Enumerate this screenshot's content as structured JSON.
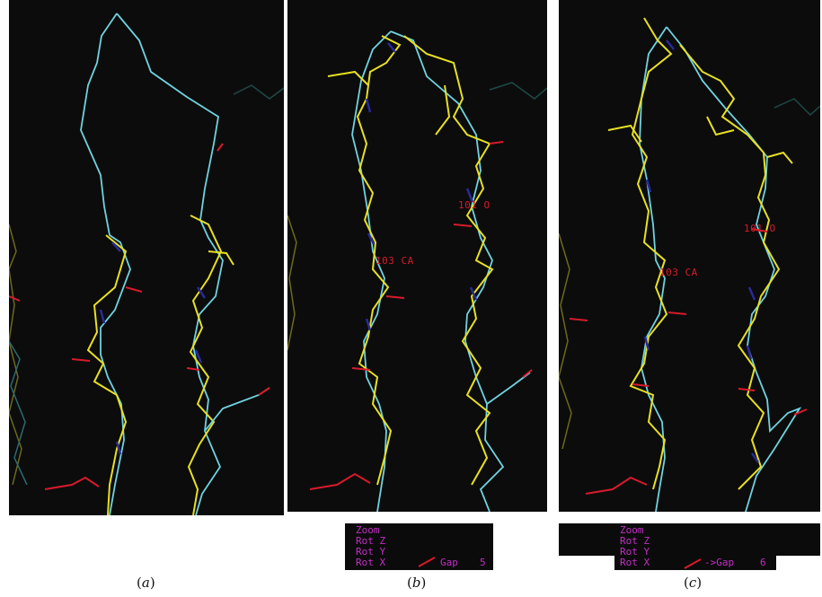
{
  "panels": [
    {
      "id": "a",
      "caption_letter": "a",
      "labels": []
    },
    {
      "id": "b",
      "caption_letter": "b",
      "labels": [
        "101 O",
        "103 CA"
      ]
    },
    {
      "id": "c",
      "caption_letter": "c",
      "labels": [
        "101 O",
        "103 CA"
      ]
    }
  ],
  "menus": [
    {
      "items": [
        "Zoom",
        "Rot Z",
        "Rot Y",
        "Rot X"
      ],
      "gap_label": "Gap",
      "gap_value": "5"
    },
    {
      "items": [
        "Zoom",
        "Rot Z",
        "Rot Y",
        "Rot X"
      ],
      "gap_label": "->Gap",
      "gap_value": "6"
    }
  ],
  "colors": {
    "background": "#0c0c0c",
    "model_trace": "#6fd3e0",
    "candidate": "#e8e022",
    "oxygen": "#d81a2c",
    "nitrogen": "#2a2a9a",
    "menu_text": "#c62ec9"
  }
}
